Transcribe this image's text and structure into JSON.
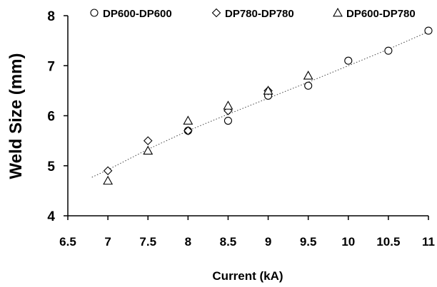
{
  "chart_data": {
    "type": "scatter",
    "xlabel": "Current (kA)",
    "ylabel": "Weld Size (mm)",
    "xlim": [
      6.5,
      11
    ],
    "ylim": [
      4,
      8
    ],
    "xticks": [
      6.5,
      7,
      7.5,
      8,
      8.5,
      9,
      9.5,
      10,
      10.5,
      11
    ],
    "xtick_labels": [
      "6.5",
      "7",
      "7.5",
      "8",
      "8.5",
      "9",
      "9.5",
      "10",
      "10.5",
      "11"
    ],
    "yticks": [
      4,
      5,
      6,
      7,
      8
    ],
    "ytick_labels": [
      "4",
      "5",
      "6",
      "7",
      "8"
    ],
    "grid": false,
    "legend_position": "top",
    "series": [
      {
        "name": "DP600-DP600",
        "marker": "circle",
        "x": [
          8,
          8.5,
          9,
          9.5,
          10,
          10.5,
          11
        ],
        "y": [
          5.7,
          5.9,
          6.4,
          6.6,
          7.1,
          7.3,
          7.7
        ]
      },
      {
        "name": "DP780-DP780",
        "marker": "diamond",
        "x": [
          7,
          7.5,
          8,
          8.5,
          9
        ],
        "y": [
          4.9,
          5.5,
          5.7,
          6.1,
          6.5
        ]
      },
      {
        "name": "DP600-DP780",
        "marker": "triangle",
        "x": [
          7,
          7.5,
          8,
          8.5,
          9,
          9.5
        ],
        "y": [
          4.7,
          5.3,
          5.9,
          6.2,
          6.5,
          6.8
        ]
      }
    ],
    "trendline": {
      "style": "dotted",
      "x": [
        6.8,
        7,
        7.5,
        8,
        8.5,
        9,
        9.5,
        10,
        10.5,
        11
      ],
      "y": [
        4.77,
        4.92,
        5.33,
        5.7,
        6.03,
        6.35,
        6.67,
        7.0,
        7.33,
        7.68
      ]
    }
  }
}
